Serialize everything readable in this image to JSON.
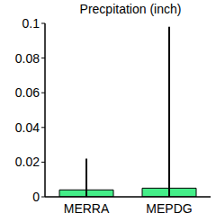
{
  "chart_data": {
    "type": "bar",
    "title": "Precpitation (inch)",
    "categories": [
      "MERRA",
      "MEPDG"
    ],
    "values": [
      0.004,
      0.005
    ],
    "min": [
      0,
      0
    ],
    "max": [
      0.022,
      0.098
    ],
    "color": "#44ee88",
    "ylim": [
      0,
      0.1
    ],
    "yticks": [
      0,
      0.02,
      0.04,
      0.06,
      0.08,
      0.1
    ],
    "grid": false
  }
}
